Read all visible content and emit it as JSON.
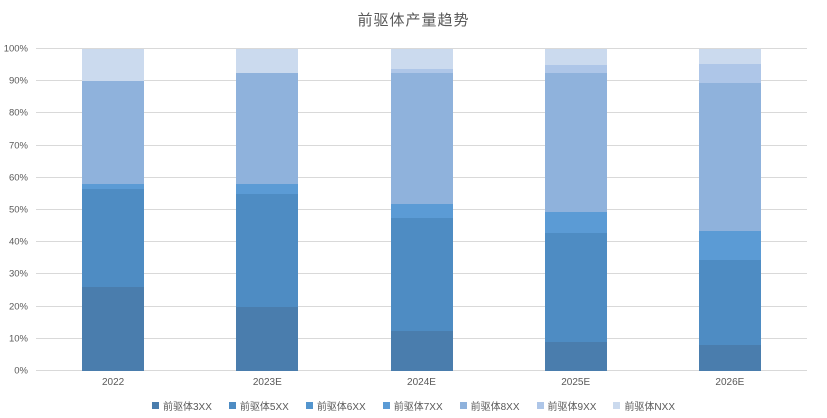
{
  "title": "前驱体产量趋势",
  "colors": {
    "background": "#FFFFFF",
    "gridline": "#D9D9D9",
    "axis_line": "#D9D9D9",
    "text": "#595959"
  },
  "chart_data": {
    "type": "bar",
    "variant": "stacked-100-percent-column",
    "title": "前驱体产量趋势",
    "xlabel": "",
    "ylabel": "",
    "ylim": [
      0,
      100
    ],
    "y_tick_step": 10,
    "y_ticks": [
      "0%",
      "10%",
      "20%",
      "30%",
      "40%",
      "50%",
      "60%",
      "70%",
      "80%",
      "90%",
      "100%"
    ],
    "grid": true,
    "legend_position": "bottom",
    "categories": [
      "2022",
      "2023E",
      "2024E",
      "2025E",
      "2026E"
    ],
    "series": [
      {
        "name": "前驱体3XX",
        "color": "#4A7DAD",
        "values": [
          26,
          20,
          12.5,
          9,
          8
        ]
      },
      {
        "name": "前驱体5XX",
        "color": "#4E8CC3",
        "values": [
          30.5,
          35,
          35,
          34,
          26.5
        ]
      },
      {
        "name": "前驱体6XX",
        "color": "#5395CE",
        "values": [
          0,
          0,
          0,
          0,
          0
        ]
      },
      {
        "name": "前驱体7XX",
        "color": "#5B9BD5",
        "values": [
          1.5,
          3,
          4.5,
          6.5,
          9
        ]
      },
      {
        "name": "前驱体8XX",
        "color": "#8FB2DC",
        "values": [
          32,
          34.5,
          40.5,
          43,
          46
        ]
      },
      {
        "name": "前驱体9XX",
        "color": "#AEC6E8",
        "values": [
          0,
          0,
          1.2,
          2.5,
          6
        ]
      },
      {
        "name": "前驱体NXX",
        "color": "#CBDAEE",
        "values": [
          10,
          7.5,
          6.3,
          5,
          4.5
        ]
      }
    ]
  }
}
